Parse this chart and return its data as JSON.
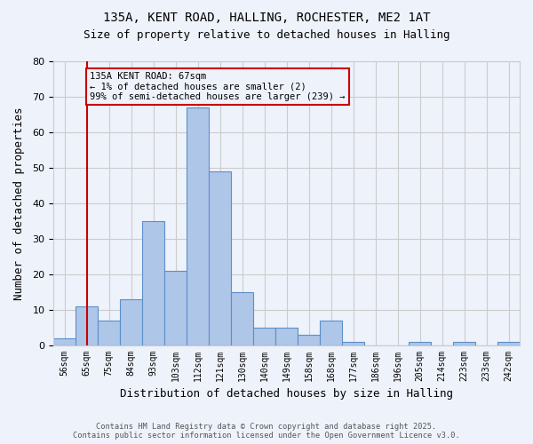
{
  "title1": "135A, KENT ROAD, HALLING, ROCHESTER, ME2 1AT",
  "title2": "Size of property relative to detached houses in Halling",
  "xlabel": "Distribution of detached houses by size in Halling",
  "ylabel": "Number of detached properties",
  "categories": [
    "56sqm",
    "65sqm",
    "75sqm",
    "84sqm",
    "93sqm",
    "103sqm",
    "112sqm",
    "121sqm",
    "130sqm",
    "140sqm",
    "149sqm",
    "158sqm",
    "168sqm",
    "177sqm",
    "186sqm",
    "196sqm",
    "205sqm",
    "214sqm",
    "223sqm",
    "233sqm",
    "242sqm"
  ],
  "values": [
    2,
    11,
    7,
    13,
    35,
    21,
    67,
    49,
    15,
    5,
    5,
    3,
    7,
    1,
    0,
    0,
    1,
    0,
    1,
    0,
    1
  ],
  "bar_color": "#aec6e8",
  "bar_edge_color": "#5b8fc9",
  "grid_color": "#cccccc",
  "bg_color": "#eef2fb",
  "annotation_box_color": "#cc0000",
  "annotation_text": "135A KENT ROAD: 67sqm\n← 1% of detached houses are smaller (2)\n99% of semi-detached houses are larger (239) →",
  "vline_x": 1,
  "vline_color": "#cc0000",
  "ylim": [
    0,
    80
  ],
  "yticks": [
    0,
    10,
    20,
    30,
    40,
    50,
    60,
    70,
    80
  ],
  "footer_line1": "Contains HM Land Registry data © Crown copyright and database right 2025.",
  "footer_line2": "Contains public sector information licensed under the Open Government Licence v3.0."
}
